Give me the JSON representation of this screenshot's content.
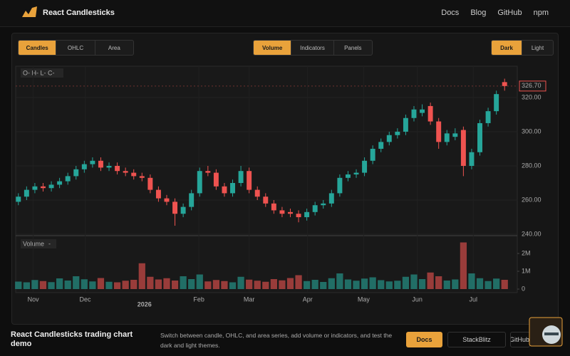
{
  "header": {
    "brand": "React Candlesticks",
    "nav": [
      "Docs",
      "Blog",
      "GitHub",
      "npm"
    ]
  },
  "toolbar": {
    "series_types": [
      "Candles",
      "OHLC",
      "Area"
    ],
    "series_active": 0,
    "addons": [
      "Volume",
      "Indicators",
      "Panels"
    ],
    "addons_active": 0,
    "themes": [
      "Dark",
      "Light"
    ],
    "themes_active": 0
  },
  "chart_data": {
    "type": "candlestick",
    "legend": "O- H- L- C-",
    "volume_label": "Volume",
    "volume_legend": "-",
    "open": [
      259,
      262,
      266,
      268,
      267,
      269,
      271,
      274,
      278,
      281,
      283,
      279,
      280,
      277,
      276,
      274,
      273,
      266,
      261,
      259,
      252,
      256,
      264,
      277,
      276,
      268,
      264,
      270,
      277,
      266,
      262,
      258,
      254,
      253,
      252,
      250,
      253,
      257,
      258,
      264,
      273,
      275,
      276,
      283,
      290,
      294,
      298,
      300,
      308,
      311,
      315,
      306,
      294,
      297,
      301,
      280,
      288,
      305,
      312,
      329
    ],
    "high": [
      264,
      268,
      270,
      270,
      271,
      273,
      276,
      280,
      283,
      285,
      285,
      282,
      282,
      279,
      278,
      276,
      275,
      268,
      263,
      261,
      258,
      266,
      279,
      280,
      278,
      270,
      272,
      280,
      279,
      268,
      264,
      260,
      256,
      255,
      254,
      255,
      259,
      260,
      266,
      275,
      277,
      278,
      285,
      292,
      296,
      300,
      302,
      310,
      315,
      316,
      317,
      308,
      301,
      302,
      303,
      290,
      307,
      314,
      324,
      331
    ],
    "low": [
      257,
      260,
      264,
      265,
      265,
      267,
      269,
      272,
      276,
      279,
      277,
      277,
      275,
      274,
      272,
      271,
      264,
      259,
      257,
      245,
      250,
      254,
      262,
      274,
      266,
      262,
      262,
      268,
      264,
      260,
      256,
      252,
      250,
      250,
      247,
      248,
      251,
      255,
      256,
      262,
      271,
      273,
      274,
      281,
      288,
      292,
      296,
      298,
      306,
      309,
      304,
      290,
      292,
      295,
      274,
      278,
      286,
      303,
      310,
      324
    ],
    "close": [
      262,
      266,
      268,
      267,
      269,
      271,
      274,
      278,
      281,
      283,
      279,
      280,
      277,
      276,
      274,
      273,
      266,
      261,
      259,
      252,
      256,
      264,
      277,
      276,
      268,
      264,
      270,
      277,
      266,
      262,
      258,
      254,
      252,
      252,
      250,
      253,
      257,
      258,
      264,
      273,
      275,
      276,
      283,
      290,
      294,
      298,
      300,
      308,
      313,
      313,
      306,
      294,
      299,
      299,
      280,
      288,
      305,
      312,
      322,
      326.7
    ],
    "volume": [
      420000,
      380000,
      510000,
      450000,
      390000,
      600000,
      480000,
      720000,
      550000,
      430000,
      620000,
      410000,
      380000,
      470000,
      520000,
      1450000,
      690000,
      540000,
      610000,
      480000,
      720000,
      560000,
      820000,
      430000,
      510000,
      450000,
      380000,
      690000,
      530000,
      470000,
      410000,
      560000,
      490000,
      620000,
      780000,
      450000,
      520000,
      400000,
      610000,
      880000,
      540000,
      470000,
      590000,
      660000,
      500000,
      430000,
      470000,
      690000,
      820000,
      560000,
      930000,
      720000,
      480000,
      540000,
      2620000,
      880000,
      610000,
      450000,
      590000,
      520000
    ],
    "xlim": [
      -0.5,
      59.5
    ],
    "xticks": [
      {
        "value": 1.8,
        "label": "Nov"
      },
      {
        "value": 8.1,
        "label": "Dec"
      },
      {
        "value": 21.9,
        "label": "Feb"
      },
      {
        "value": 28,
        "label": "Mar"
      },
      {
        "value": 35.1,
        "label": "Apr"
      },
      {
        "value": 41.9,
        "label": "May"
      },
      {
        "value": 48.4,
        "label": "Jun"
      },
      {
        "value": 55.2,
        "label": "Jul"
      }
    ],
    "year_ticks": [
      {
        "value": 15.3,
        "label": "2026"
      }
    ],
    "ylim": [
      239.6,
      338.3
    ],
    "yticks": [
      {
        "value": 240,
        "label": "240.00"
      },
      {
        "value": 260,
        "label": "260.00"
      },
      {
        "value": 280,
        "label": "280.00"
      },
      {
        "value": 300,
        "label": "300.00"
      },
      {
        "value": 320,
        "label": "320.00"
      }
    ],
    "y2lim": [
      0,
      2920000
    ],
    "y2ticks": [
      0,
      {
        "value": 1000000,
        "label": "1M"
      },
      {
        "value": 2000000,
        "label": "2M"
      }
    ],
    "last_price": {
      "value": 326.7,
      "label": "326.70"
    },
    "up_color": "#26a69a",
    "down_color": "#ef5350",
    "grid": true
  },
  "footer": {
    "title": "React Candlesticks trading chart demo",
    "description": "Switch between candle, OHLC, and area series, add volume or indicators, and test the dark and light themes.",
    "buttons": [
      "Docs",
      "StackBlitz",
      "GitHub"
    ]
  }
}
